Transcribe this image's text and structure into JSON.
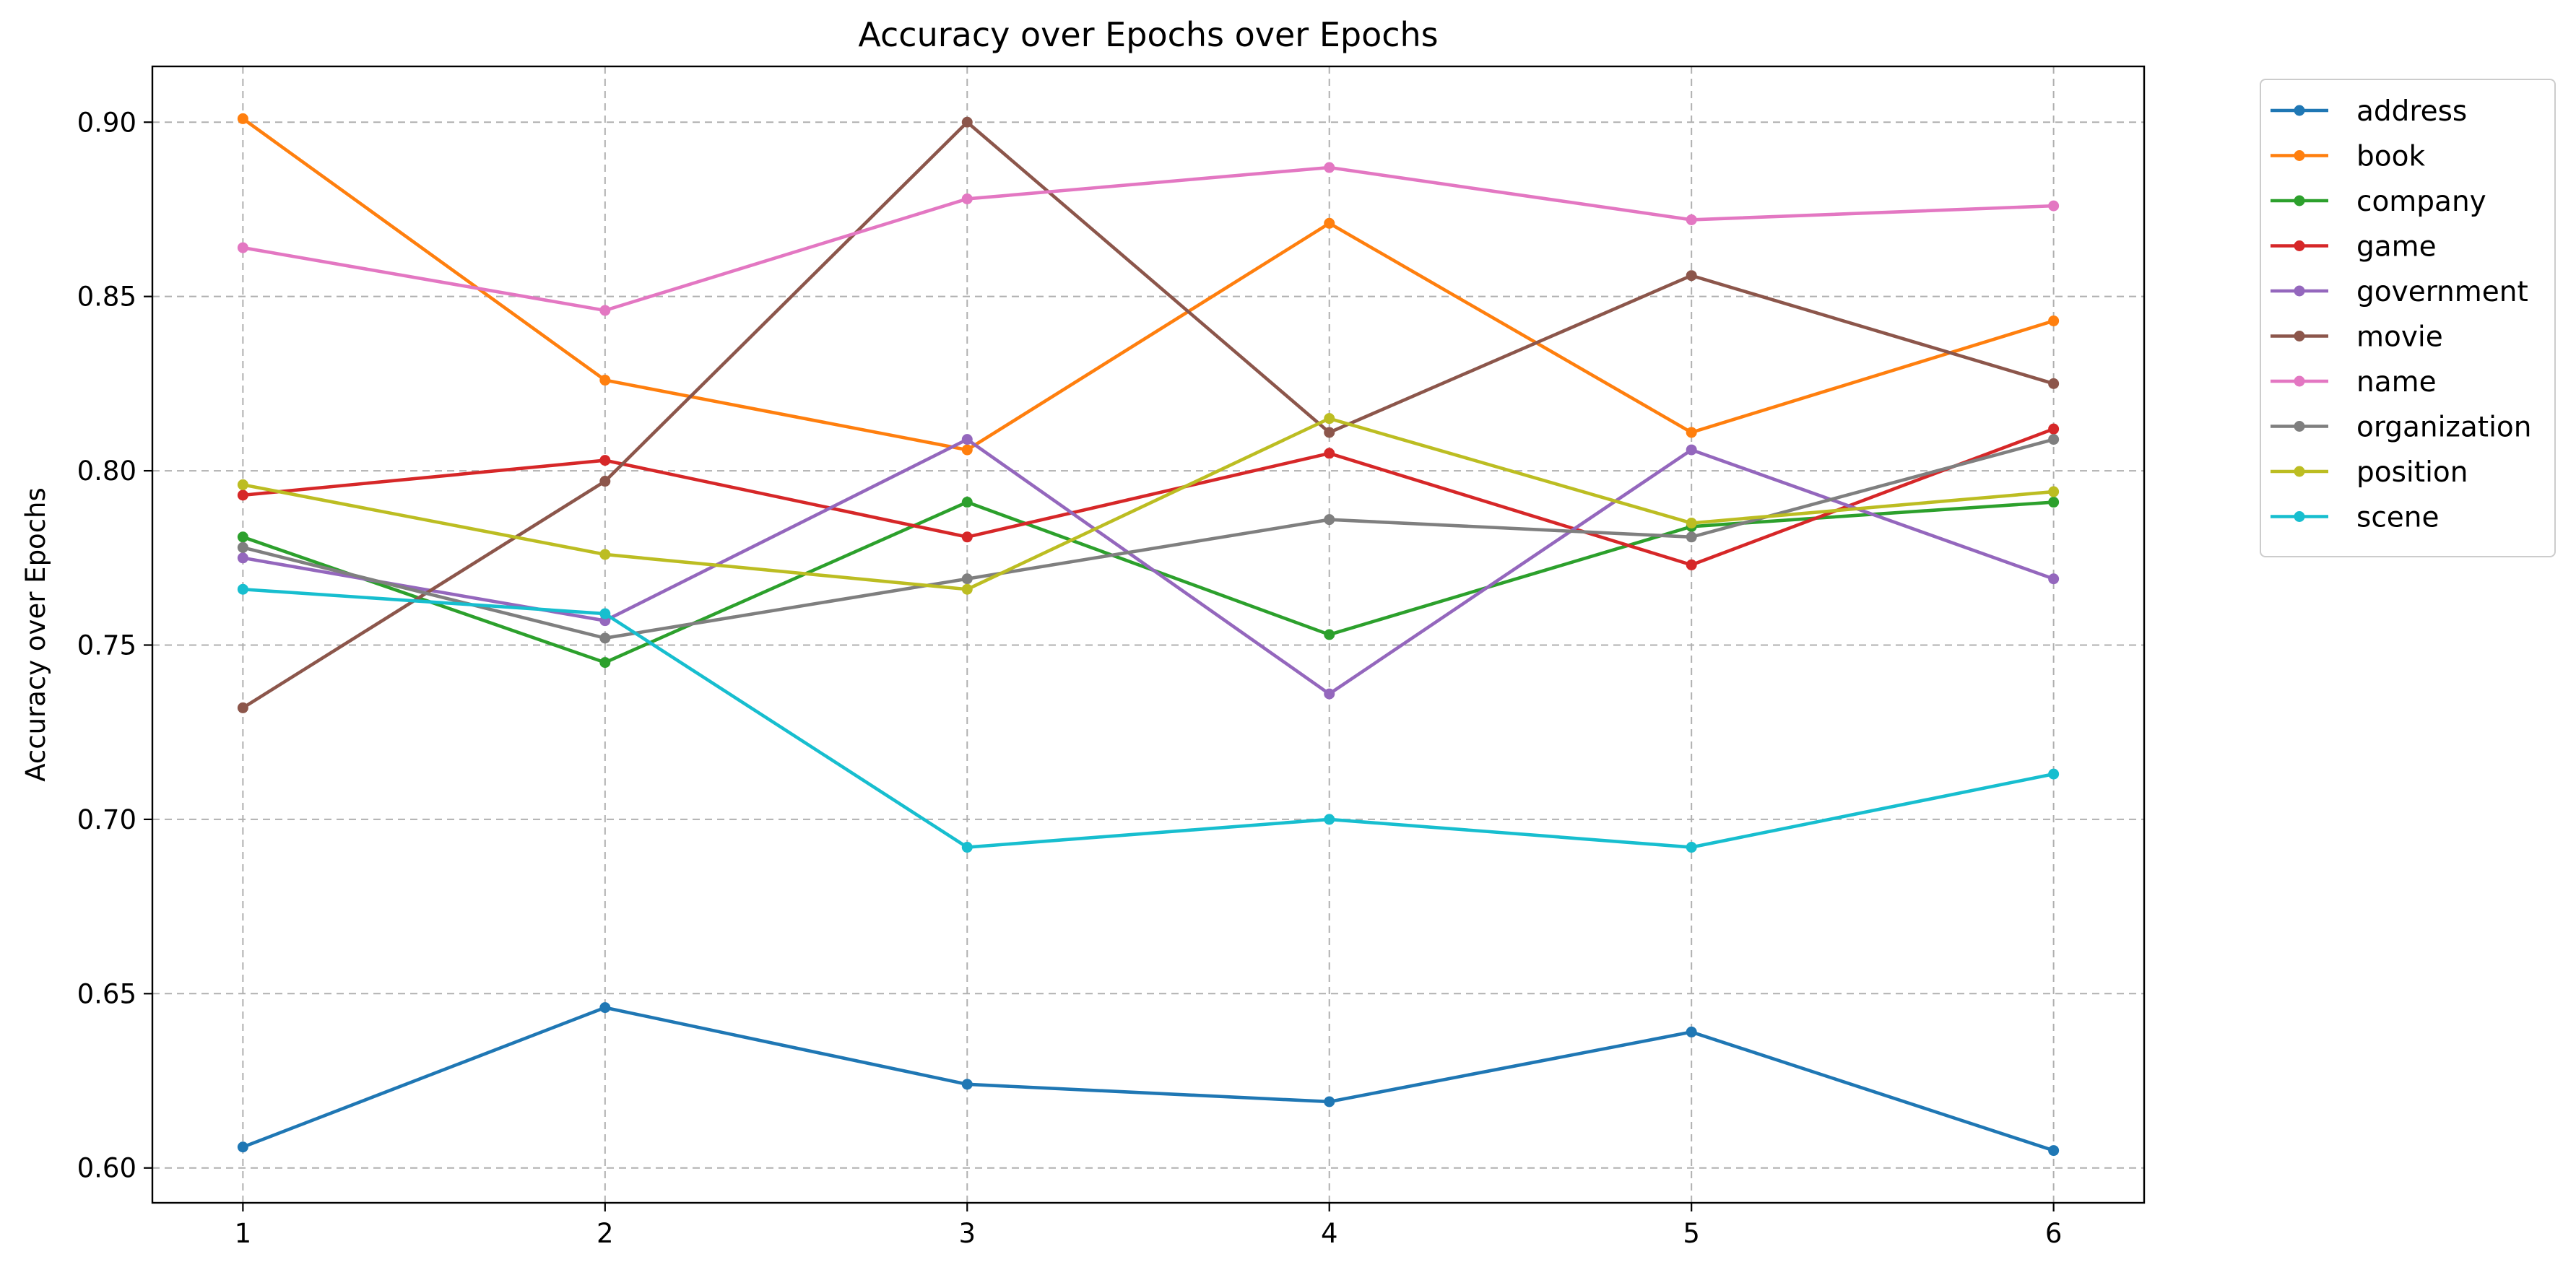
{
  "chart_data": {
    "type": "line",
    "title": "Accuracy over Epochs over Epochs",
    "xlabel": "",
    "ylabel": "Accuracy over Epochs",
    "x": [
      1,
      2,
      3,
      4,
      5,
      6
    ],
    "x_ticks": [
      "1",
      "2",
      "3",
      "4",
      "5",
      "6"
    ],
    "xlim": [
      0.75,
      6.25
    ],
    "ylim": [
      0.59,
      0.916
    ],
    "y_ticks": [
      "0.60",
      "0.65",
      "0.70",
      "0.75",
      "0.80",
      "0.85",
      "0.90"
    ],
    "y_tick_values": [
      0.6,
      0.65,
      0.7,
      0.75,
      0.8,
      0.85,
      0.9
    ],
    "grid": true,
    "legend_position": "outside-top-right",
    "series": [
      {
        "name": "address",
        "color": "#1f77b4",
        "values": [
          0.606,
          0.646,
          0.624,
          0.619,
          0.639,
          0.605
        ]
      },
      {
        "name": "book",
        "color": "#ff7f0e",
        "values": [
          0.901,
          0.826,
          0.806,
          0.871,
          0.811,
          0.843
        ]
      },
      {
        "name": "company",
        "color": "#2ca02c",
        "values": [
          0.781,
          0.745,
          0.791,
          0.753,
          0.784,
          0.791
        ]
      },
      {
        "name": "game",
        "color": "#d62728",
        "values": [
          0.793,
          0.803,
          0.781,
          0.805,
          0.773,
          0.812
        ]
      },
      {
        "name": "government",
        "color": "#9467bd",
        "values": [
          0.775,
          0.757,
          0.809,
          0.736,
          0.806,
          0.769
        ]
      },
      {
        "name": "movie",
        "color": "#8c564b",
        "values": [
          0.732,
          0.797,
          0.9,
          0.811,
          0.856,
          0.825
        ]
      },
      {
        "name": "name",
        "color": "#e377c2",
        "values": [
          0.864,
          0.846,
          0.878,
          0.887,
          0.872,
          0.876
        ]
      },
      {
        "name": "organization",
        "color": "#7f7f7f",
        "values": [
          0.778,
          0.752,
          0.769,
          0.786,
          0.781,
          0.809
        ]
      },
      {
        "name": "position",
        "color": "#bcbd22",
        "values": [
          0.796,
          0.776,
          0.766,
          0.815,
          0.785,
          0.794
        ]
      },
      {
        "name": "scene",
        "color": "#17becf",
        "values": [
          0.766,
          0.759,
          0.692,
          0.7,
          0.692,
          0.713
        ]
      }
    ]
  }
}
